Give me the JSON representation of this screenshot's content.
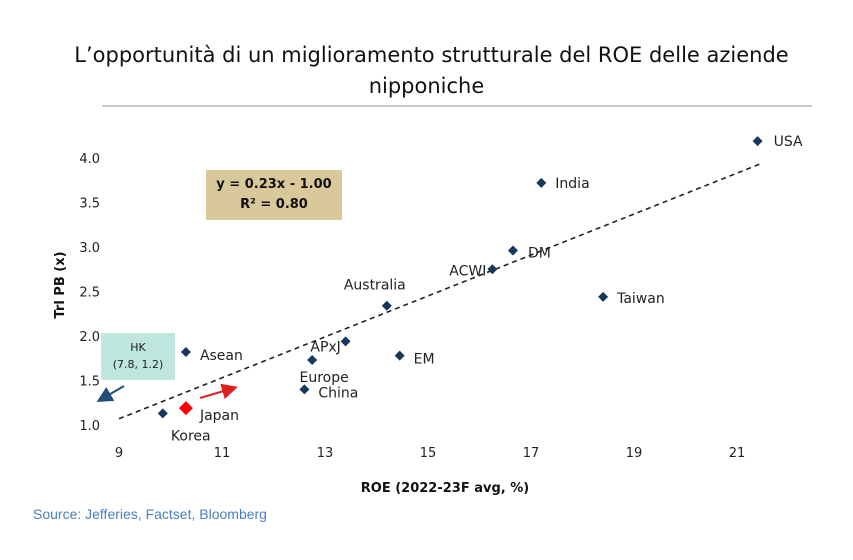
{
  "title_line1": "L’opportunità di un miglioramento strutturale del ROE delle aziende",
  "title_line2": "nipponiche",
  "source": "Source: Jefferies, Factset, Bloomberg",
  "chart_data": {
    "type": "scatter",
    "xlabel": "ROE (2022-23F avg, %)",
    "ylabel": "Trl PB (x)",
    "xlim": [
      9,
      22
    ],
    "ylim": [
      1.0,
      4.2
    ],
    "xticks": [
      "9",
      "11",
      "13",
      "15",
      "17",
      "19",
      "21"
    ],
    "yticks": [
      "1.0",
      "1.5",
      "2.0",
      "2.5",
      "3.0",
      "3.5",
      "4.0"
    ],
    "grid": false,
    "points": [
      {
        "name": "USA",
        "x": 21.4,
        "y": 4.19
      },
      {
        "name": "India",
        "x": 17.2,
        "y": 3.72
      },
      {
        "name": "DM",
        "x": 16.65,
        "y": 2.96
      },
      {
        "name": "ACWI",
        "x": 16.25,
        "y": 2.75
      },
      {
        "name": "Taiwan",
        "x": 18.4,
        "y": 2.44
      },
      {
        "name": "Australia",
        "x": 14.2,
        "y": 2.34
      },
      {
        "name": "APxJ",
        "x": 13.4,
        "y": 1.94
      },
      {
        "name": "EM",
        "x": 14.45,
        "y": 1.78
      },
      {
        "name": "Europe",
        "x": 12.75,
        "y": 1.73
      },
      {
        "name": "China",
        "x": 12.6,
        "y": 1.4
      },
      {
        "name": "Asean",
        "x": 10.3,
        "y": 1.82
      },
      {
        "name": "Korea",
        "x": 9.85,
        "y": 1.13
      },
      {
        "name": "Japan",
        "x": 10.3,
        "y": 1.19,
        "highlight": true
      }
    ],
    "trendline": {
      "slope": 0.23,
      "intercept": -1.0,
      "x_range": [
        9,
        21.5
      ]
    },
    "equation": "y = 0.23x - 1.00",
    "r2": "R² = 0.80",
    "annotation_hk_title": "HK",
    "annotation_hk_value": "(7.8, 1.2)",
    "colors": {
      "point": "#17375e",
      "highlight": "#ff0000",
      "trend": "#222222",
      "hk_arrow": "#1f4e79",
      "japan_arrow": "#e02020"
    }
  }
}
